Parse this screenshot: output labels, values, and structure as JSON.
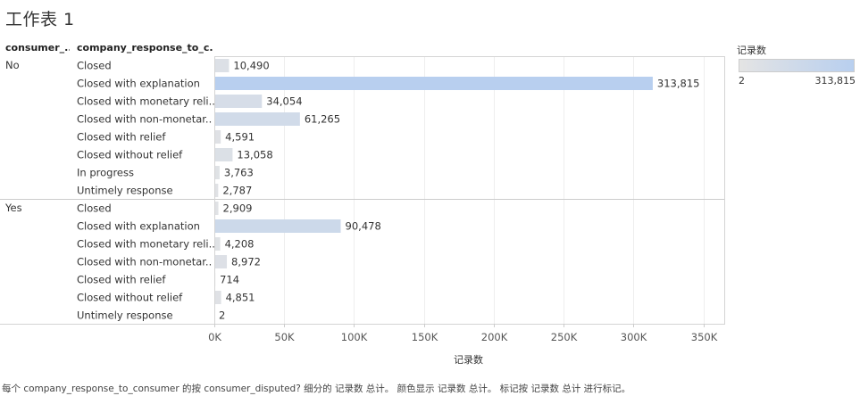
{
  "title": "工作表 1",
  "headers": {
    "disputed": "consumer_..",
    "response": "company_response_to_c.."
  },
  "legend": {
    "title": "记录数",
    "min": "2",
    "max": "313,815"
  },
  "caption": "每个 company_response_to_consumer 的按 consumer_disputed? 细分的 记录数 总计。 颜色显示 记录数 总计。 标记按 记录数 总计 进行标记。",
  "chart_data": {
    "type": "bar",
    "orientation": "horizontal",
    "xlabel": "记录数",
    "xlim": [
      0,
      365000
    ],
    "ticks": [
      {
        "value": 0,
        "label": "0K"
      },
      {
        "value": 50000,
        "label": "50K"
      },
      {
        "value": 100000,
        "label": "100K"
      },
      {
        "value": 150000,
        "label": "150K"
      },
      {
        "value": 200000,
        "label": "200K"
      },
      {
        "value": 250000,
        "label": "250K"
      },
      {
        "value": 300000,
        "label": "300K"
      },
      {
        "value": 350000,
        "label": "350K"
      }
    ],
    "grid": "vertical",
    "color_scale": {
      "low": "#e4e4e4",
      "high": "#b8cfef"
    },
    "groups": [
      {
        "name": "No",
        "rows": [
          {
            "category": "Closed",
            "value": 10490,
            "label": "10,490"
          },
          {
            "category": "Closed with explanation",
            "value": 313815,
            "label": "313,815"
          },
          {
            "category": "Closed with monetary reli..",
            "value": 34054,
            "label": "34,054"
          },
          {
            "category": "Closed with non-monetar..",
            "value": 61265,
            "label": "61,265"
          },
          {
            "category": "Closed with relief",
            "value": 4591,
            "label": "4,591"
          },
          {
            "category": "Closed without relief",
            "value": 13058,
            "label": "13,058"
          },
          {
            "category": "In progress",
            "value": 3763,
            "label": "3,763"
          },
          {
            "category": "Untimely response",
            "value": 2787,
            "label": "2,787"
          }
        ]
      },
      {
        "name": "Yes",
        "rows": [
          {
            "category": "Closed",
            "value": 2909,
            "label": "2,909"
          },
          {
            "category": "Closed with explanation",
            "value": 90478,
            "label": "90,478"
          },
          {
            "category": "Closed with monetary reli..",
            "value": 4208,
            "label": "4,208"
          },
          {
            "category": "Closed with non-monetar..",
            "value": 8972,
            "label": "8,972"
          },
          {
            "category": "Closed with relief",
            "value": 714,
            "label": "714"
          },
          {
            "category": "Closed without relief",
            "value": 4851,
            "label": "4,851"
          },
          {
            "category": "Untimely response",
            "value": 2,
            "label": "2"
          }
        ]
      }
    ]
  }
}
